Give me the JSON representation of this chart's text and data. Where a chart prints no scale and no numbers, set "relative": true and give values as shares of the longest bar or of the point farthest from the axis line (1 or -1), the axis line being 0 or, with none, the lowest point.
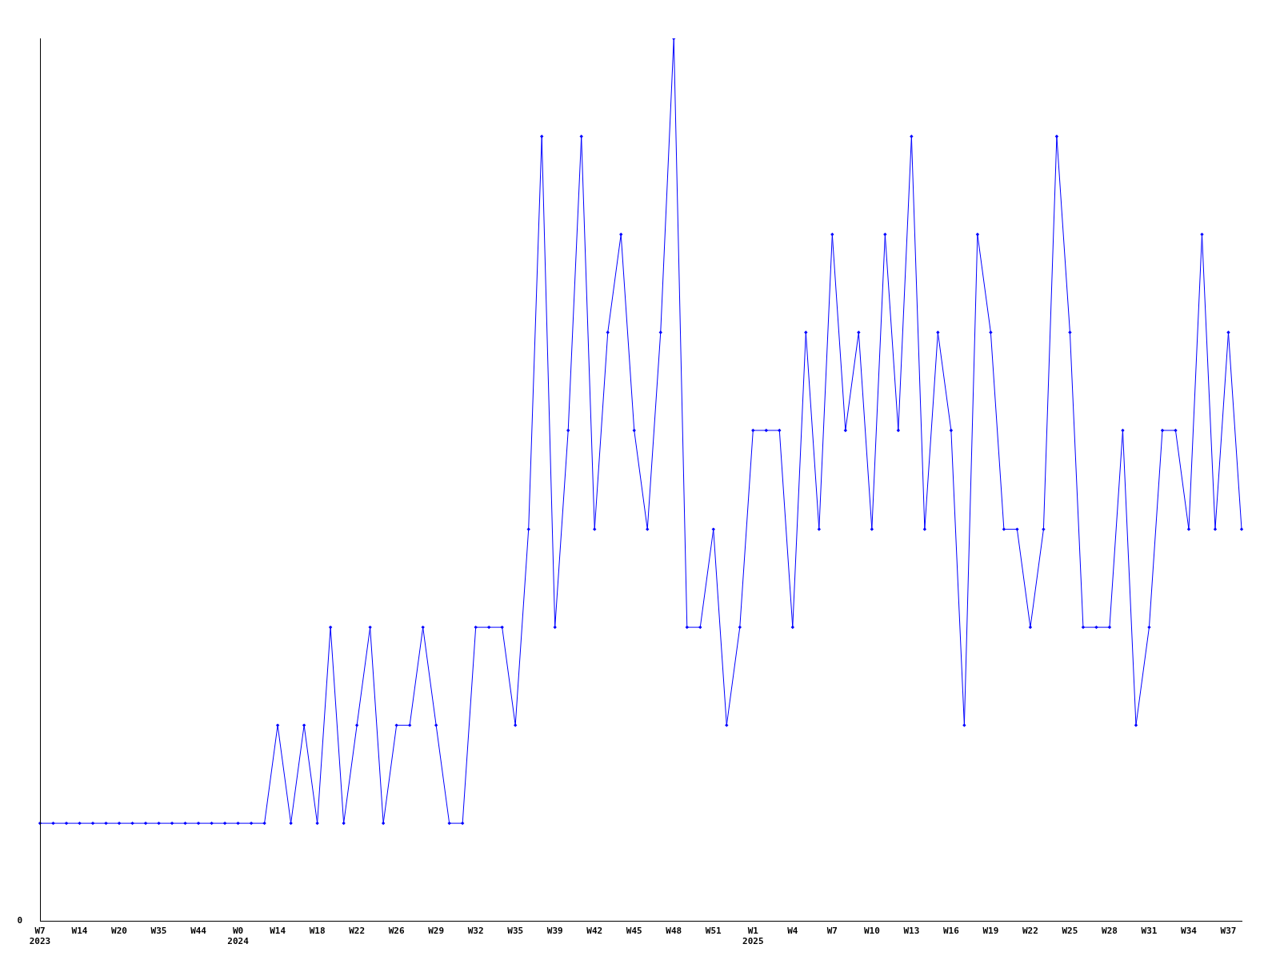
{
  "chart_data": {
    "type": "line",
    "relative": true,
    "marker": "diamond",
    "grid": false,
    "legend": false,
    "annotations": [
      "0"
    ],
    "categories": [
      "W7\n2023",
      null,
      null,
      "W14",
      null,
      null,
      "W20",
      null,
      null,
      "W35",
      null,
      null,
      "W44",
      null,
      null,
      "W0\n2024",
      null,
      null,
      "W14",
      null,
      null,
      "W18",
      null,
      null,
      "W22",
      null,
      null,
      "W26",
      null,
      null,
      "W29",
      null,
      null,
      "W32",
      null,
      null,
      "W35",
      null,
      null,
      "W39",
      null,
      null,
      "W42",
      null,
      null,
      "W45",
      null,
      null,
      "W48",
      null,
      null,
      "W51",
      null,
      null,
      "W1\n2025",
      null,
      null,
      "W4",
      null,
      null,
      "W7",
      null,
      null,
      "W10",
      null,
      null,
      "W13",
      null,
      null,
      "W16",
      null,
      null,
      "W19",
      null,
      null,
      "W22",
      null,
      null,
      "W25",
      null,
      null,
      "W28",
      null,
      null,
      "W31",
      null,
      null,
      "W34",
      null,
      null,
      "W37",
      null
    ],
    "series": [
      {
        "color": "#0000ff",
        "values": [
          0.111,
          0.111,
          0.111,
          0.111,
          0.111,
          0.111,
          0.111,
          0.111,
          0.111,
          0.111,
          0.111,
          0.111,
          0.111,
          0.111,
          0.111,
          0.111,
          0.111,
          0.111,
          0.222,
          0.111,
          0.222,
          0.111,
          0.333,
          0.111,
          0.222,
          0.333,
          0.111,
          0.222,
          0.222,
          0.333,
          0.222,
          0.111,
          0.111,
          0.333,
          0.333,
          0.333,
          0.222,
          0.444,
          0.889,
          0.333,
          0.556,
          0.889,
          0.444,
          0.667,
          0.778,
          0.556,
          0.444,
          0.667,
          1,
          0.333,
          0.333,
          0.444,
          0.222,
          0.333,
          0.556,
          0.556,
          0.556,
          0.333,
          0.667,
          0.444,
          0.778,
          0.556,
          0.667,
          0.444,
          0.778,
          0.556,
          0.889,
          0.444,
          0.667,
          0.556,
          0.222,
          0.778,
          0.667,
          0.444,
          0.444,
          0.333,
          0.444,
          0.889,
          0.667,
          0.333,
          0.333,
          0.333,
          0.556,
          0.222,
          0.333,
          0.556,
          0.556,
          0.444,
          0.778,
          0.444,
          0.667,
          0.444
        ]
      }
    ]
  }
}
